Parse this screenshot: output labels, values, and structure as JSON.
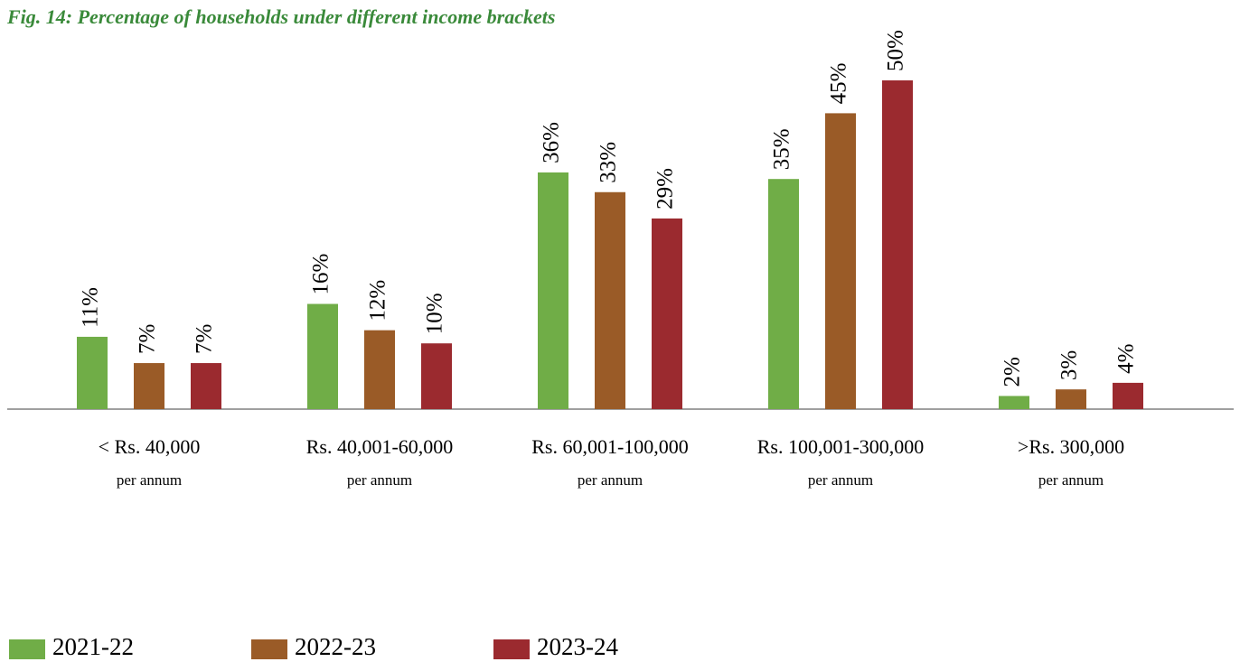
{
  "chart_data": {
    "type": "bar",
    "title": "Fig. 14: Percentage of  households under different income brackets",
    "categories": [
      "< Rs. 40,000",
      "Rs. 40,001-60,000",
      "Rs. 60,001-100,000",
      "Rs. 100,001-300,000",
      ">Rs. 300,000"
    ],
    "category_sublabels": [
      "per annum",
      "per annum",
      "per annum",
      "per annum",
      "per annum"
    ],
    "series": [
      {
        "name": "2021-22",
        "color": "#70ad47",
        "values": [
          11,
          16,
          36,
          35,
          2
        ],
        "value_labels": [
          "11%",
          "16%",
          "36%",
          "35%",
          "2%"
        ]
      },
      {
        "name": "2022-23",
        "color": "#9a5b27",
        "values": [
          7,
          12,
          33,
          45,
          3
        ],
        "value_labels": [
          "7%",
          "12%",
          "33%",
          "45%",
          "3%"
        ]
      },
      {
        "name": "2023-24",
        "color": "#9b2a2f",
        "values": [
          7,
          10,
          29,
          50,
          4
        ],
        "value_labels": [
          "7%",
          "10%",
          "29%",
          "50%",
          "4%"
        ]
      }
    ],
    "legend": "bottom-left"
  }
}
